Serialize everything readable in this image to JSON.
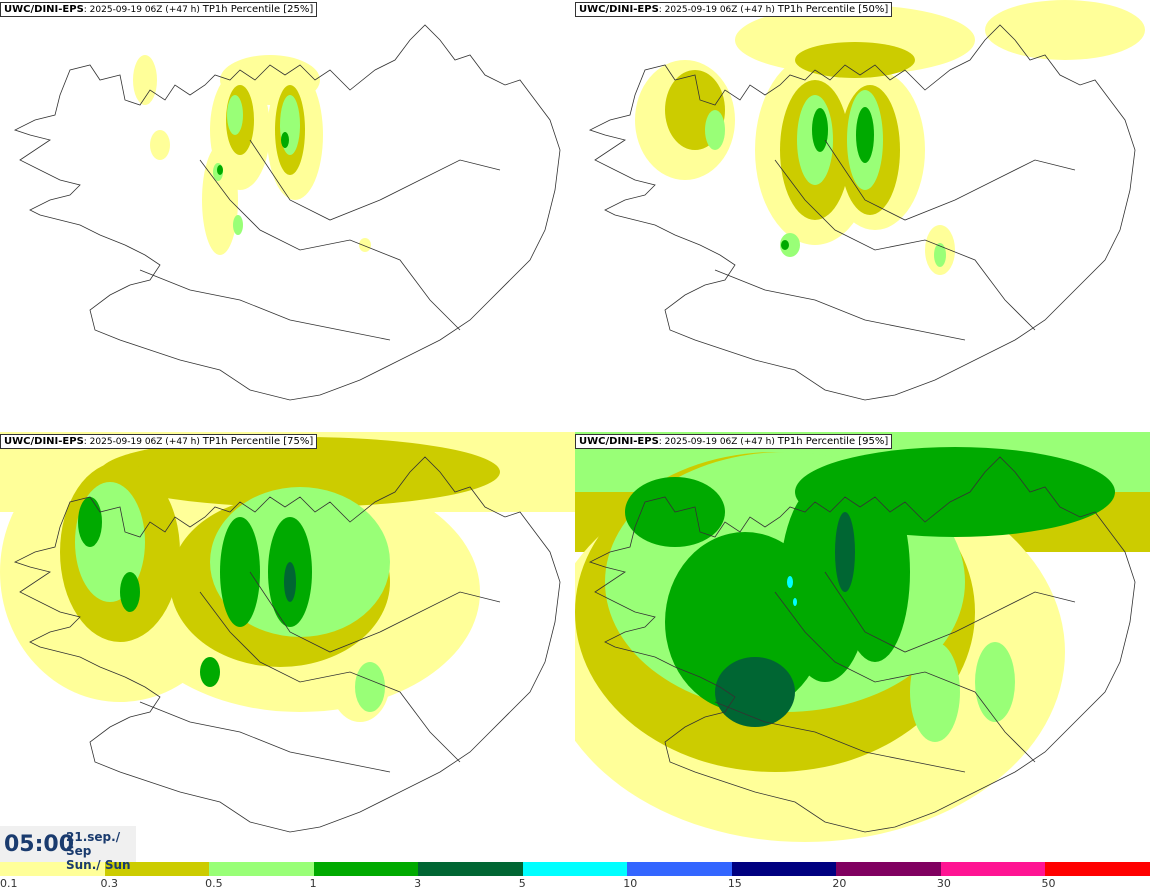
{
  "panels": [
    {
      "model": "UWC/DINI-EPS",
      "run": ": 2025-09-19 06Z (+47 h) ",
      "product": "TP1h Percentile [25%]"
    },
    {
      "model": "UWC/DINI-EPS",
      "run": ": 2025-09-19 06Z (+47 h) ",
      "product": "TP1h Percentile [50%]"
    },
    {
      "model": "UWC/DINI-EPS",
      "run": ": 2025-09-19 06Z (+47 h) ",
      "product": "TP1h Percentile [75%]"
    },
    {
      "model": "UWC/DINI-EPS",
      "run": ": 2025-09-19 06Z (+47 h) ",
      "product": "TP1h Percentile [95%]"
    }
  ],
  "valid_time": {
    "time": "05:00",
    "date": "21.sep./ Sep",
    "day": "Sun./ Sun"
  },
  "legend": {
    "colors": [
      "#ffff99",
      "#cccc00",
      "#99ff77",
      "#00aa00",
      "#006633",
      "#00ffff",
      "#3366ff",
      "#000080",
      "#800060",
      "#ff1493",
      "#ff0000"
    ],
    "labels": [
      "0.1",
      "0.3",
      "0.5",
      "1",
      "3",
      "5",
      "10",
      "15",
      "20",
      "30",
      "50"
    ]
  }
}
